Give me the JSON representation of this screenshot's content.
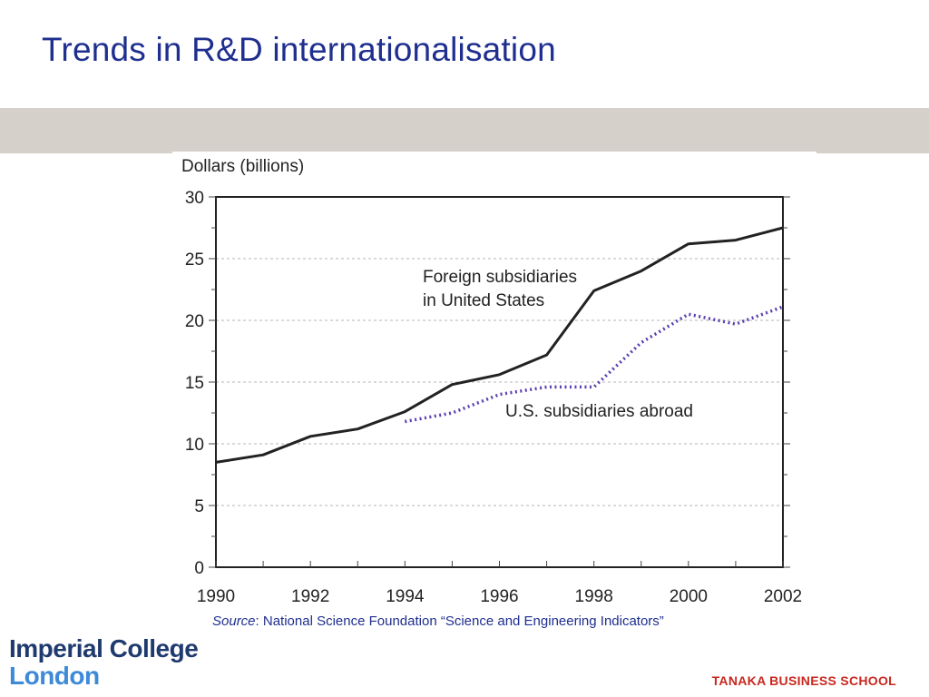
{
  "slide": {
    "title": "Trends in R&D internationalisation"
  },
  "source": {
    "label": "Source",
    "text": ": National Science Foundation “Science and Engineering Indicators”"
  },
  "logos": {
    "imperial_line1": "Imperial College",
    "imperial_line2": "London",
    "tanaka": "TANAKA BUSINESS SCHOOL"
  },
  "colors": {
    "title": "#1f2f8f",
    "band": "#d6d0cb",
    "foreign_series": "#222222",
    "us_series": "#5a3fb0",
    "tanaka": "#c8281e"
  },
  "chart_data": {
    "type": "line",
    "ylabel": "Dollars (billions)",
    "xlabel": "",
    "xlim": [
      1990,
      2002
    ],
    "ylim": [
      0,
      30
    ],
    "x_ticks": [
      1990,
      1992,
      1994,
      1996,
      1998,
      2000,
      2002
    ],
    "y_ticks": [
      0,
      5,
      10,
      15,
      20,
      25,
      30
    ],
    "grid": "horizontal dashed",
    "series": [
      {
        "name": "Foreign subsidiaries in United States",
        "label_lines": [
          "Foreign subsidiaries",
          "in United States"
        ],
        "style": "solid",
        "x": [
          1990,
          1991,
          1992,
          1993,
          1994,
          1995,
          1996,
          1997,
          1998,
          1999,
          2000,
          2001,
          2002
        ],
        "y": [
          8.5,
          9.1,
          10.6,
          11.2,
          12.6,
          14.8,
          15.6,
          17.2,
          22.4,
          24.0,
          26.2,
          26.5,
          27.5
        ]
      },
      {
        "name": "U.S. subsidiaries abroad",
        "label_lines": [
          "U.S. subsidiaries abroad"
        ],
        "style": "dotted",
        "x": [
          1994,
          1995,
          1996,
          1997,
          1998,
          1999,
          2000,
          2001,
          2002
        ],
        "y": [
          11.8,
          12.5,
          14.0,
          14.6,
          14.6,
          18.2,
          20.5,
          19.7,
          21.1
        ]
      }
    ]
  }
}
